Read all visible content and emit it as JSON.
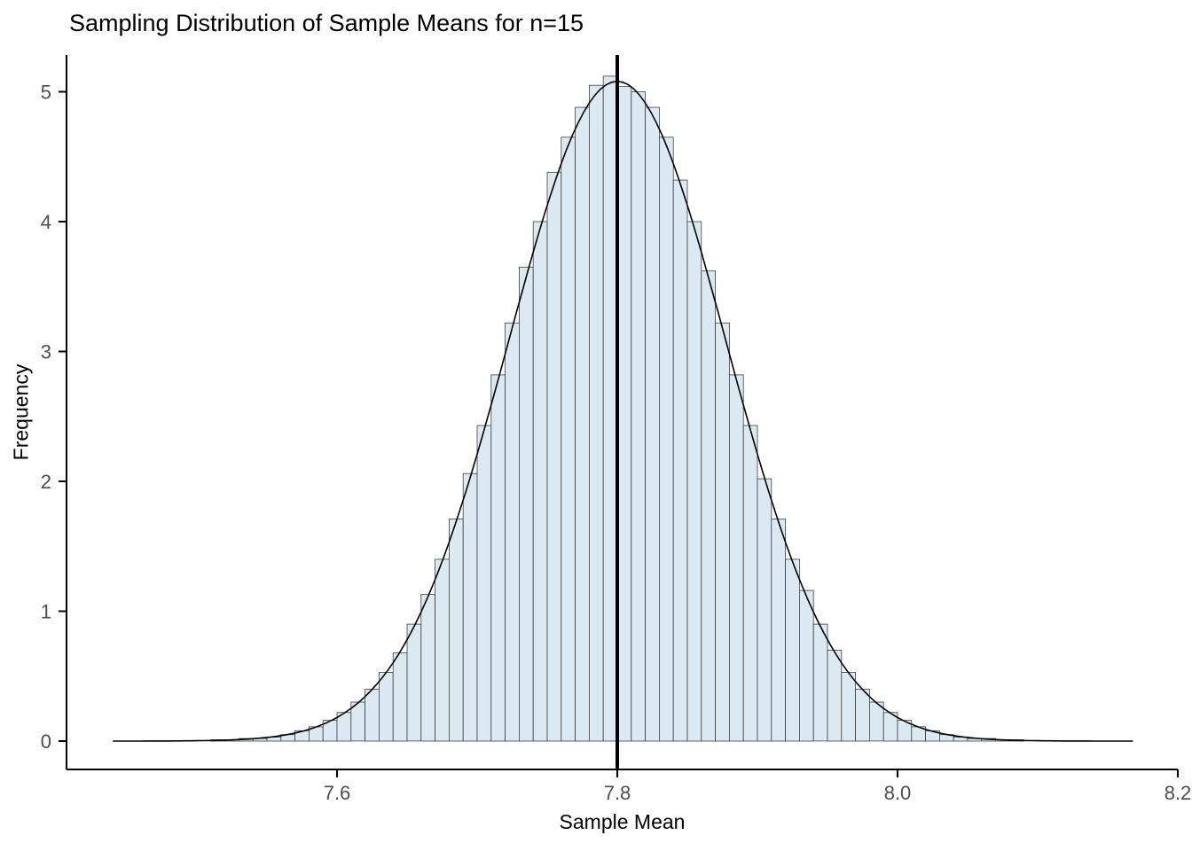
{
  "chart_data": {
    "type": "bar",
    "subtype": "histogram-with-density-curve",
    "title": "Sampling Distribution of Sample Means for n=15",
    "xlabel": "Sample Mean",
    "ylabel": "Frequency",
    "xlim": [
      7.42,
      8.2
    ],
    "ylim": [
      0,
      5.3
    ],
    "grid": "off",
    "legend": "none",
    "x_ticks": [
      {
        "value": 7.6,
        "label": "7.6"
      },
      {
        "value": 7.8,
        "label": "7.8"
      },
      {
        "value": 8.0,
        "label": "8.0"
      },
      {
        "value": 8.2,
        "label": "8.2"
      }
    ],
    "y_ticks": [
      {
        "value": 0,
        "label": "0"
      },
      {
        "value": 1,
        "label": "1"
      },
      {
        "value": 2,
        "label": "2"
      },
      {
        "value": 3,
        "label": "3"
      },
      {
        "value": 4,
        "label": "4"
      },
      {
        "value": 5,
        "label": "5"
      }
    ],
    "histogram": {
      "bin_start": 7.49,
      "bin_width": 0.01,
      "densities": [
        0.0,
        0.0,
        0.01,
        0.01,
        0.02,
        0.02,
        0.03,
        0.05,
        0.08,
        0.11,
        0.16,
        0.22,
        0.3,
        0.4,
        0.53,
        0.68,
        0.9,
        1.13,
        1.4,
        1.71,
        2.06,
        2.43,
        2.82,
        3.22,
        3.65,
        4.0,
        4.38,
        4.65,
        4.88,
        5.05,
        5.12,
        5.04,
        5.0,
        4.88,
        4.65,
        4.32,
        4.0,
        3.62,
        3.22,
        2.82,
        2.43,
        2.02,
        1.71,
        1.4,
        1.16,
        0.9,
        0.7,
        0.53,
        0.4,
        0.3,
        0.22,
        0.16,
        0.11,
        0.08,
        0.05,
        0.03,
        0.02,
        0.02,
        0.01,
        0.01,
        0.0,
        0.0
      ]
    },
    "density_curve": {
      "mean": 7.8,
      "sd": 0.0775,
      "peak": 5.08,
      "x_start": 7.44,
      "x_end": 8.17
    },
    "mean_line_x": 7.8,
    "colors": {
      "bar_fill": "#dbe9f2",
      "bar_stroke": "#404040",
      "curve": "#000000",
      "mean_line": "#000000",
      "axis": "#000000",
      "tick_label": "#4d4d4d"
    }
  }
}
